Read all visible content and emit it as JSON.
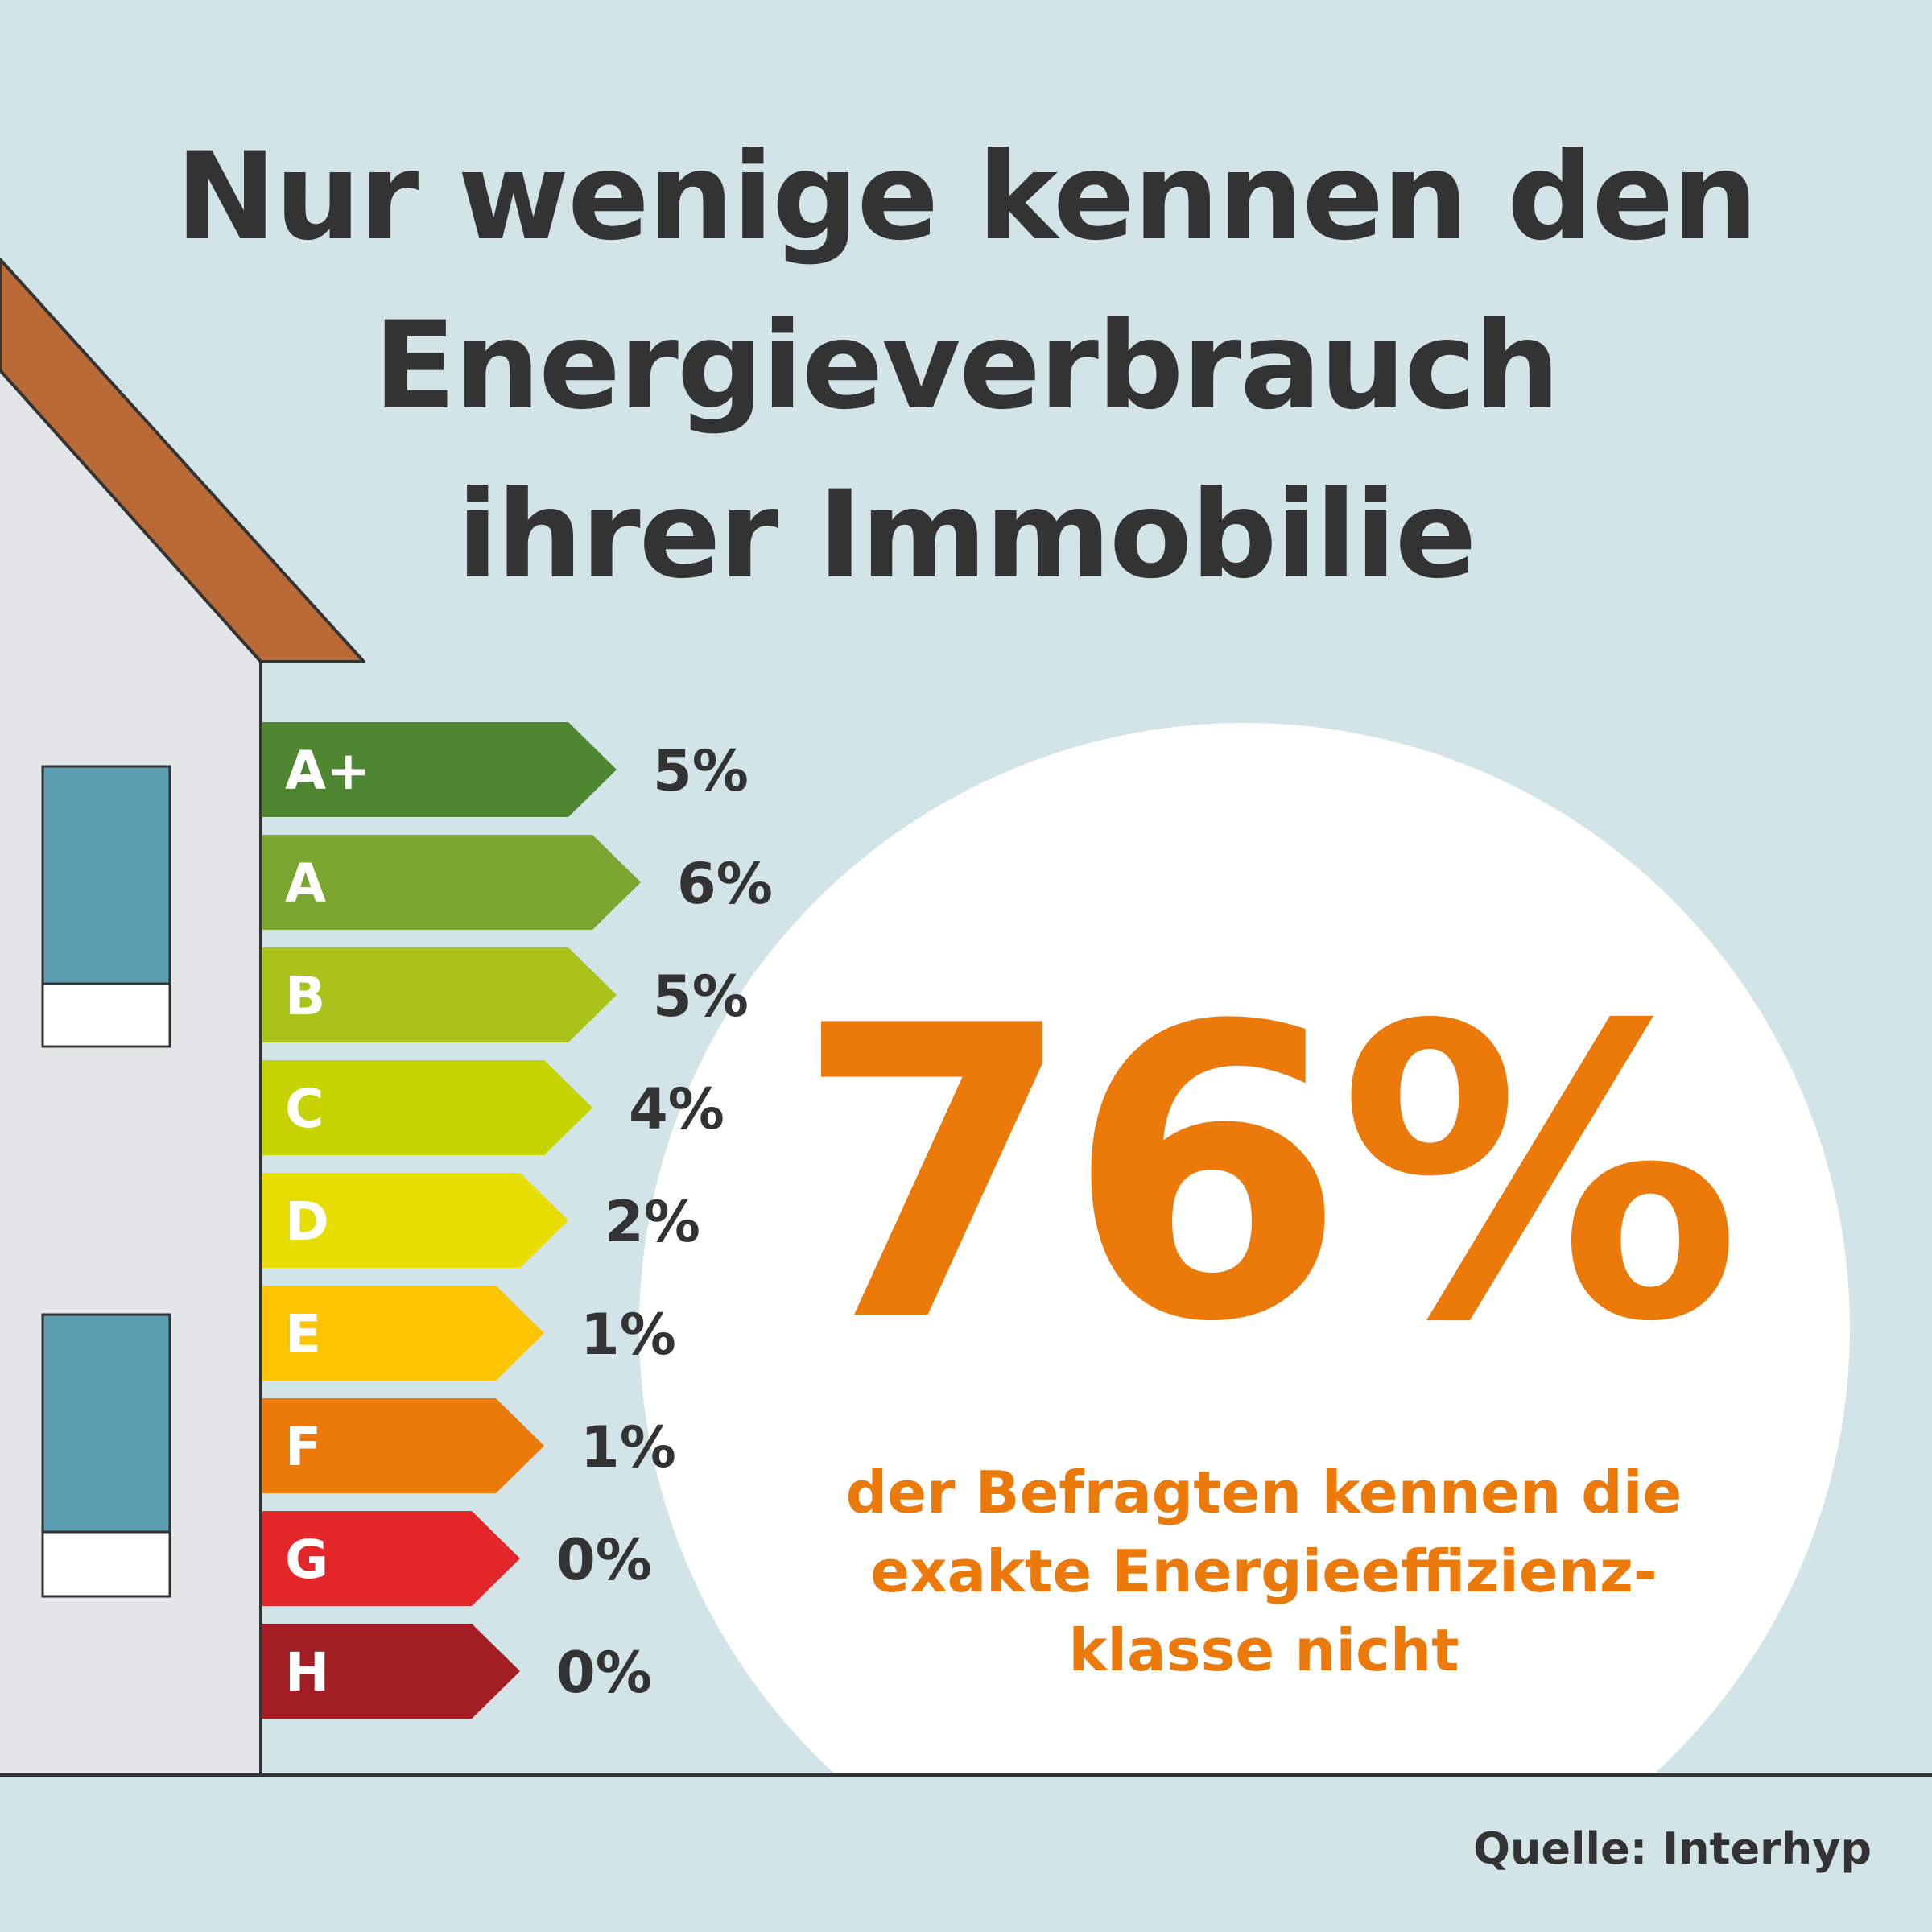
{
  "title": {
    "line1": "Nur wenige kennen den",
    "line2": "Energieverbrauch",
    "line3": "ihrer Immobilie"
  },
  "headline_stat": {
    "value": "76%",
    "description_line1": "der Befragten kennen die",
    "description_line2": "exakte Energieeffizienz-",
    "description_line3": "klasse nicht"
  },
  "source": "Quelle: Interhyp",
  "colors": {
    "background": "#d3e4e9",
    "house_wall": "#e3e6e6",
    "roof": "#ba6a37",
    "window": "#5a9db0",
    "accent_orange": "#ec7a0b",
    "text_dark": "#333333"
  },
  "chart_data": {
    "type": "bar",
    "title": "",
    "xlabel": "",
    "ylabel": "",
    "unit": "%",
    "categories": [
      "A+",
      "A",
      "B",
      "C",
      "D",
      "E",
      "F",
      "G",
      "H"
    ],
    "values": [
      5,
      6,
      5,
      4,
      2,
      1,
      1,
      0,
      0
    ],
    "value_labels": [
      "5%",
      "6%",
      "5%",
      "4%",
      "2%",
      "1%",
      "1%",
      "0%",
      "0%"
    ],
    "bar_colors": [
      "#4f8631",
      "#7aa52e",
      "#a9c31a",
      "#c7d300",
      "#e8dd00",
      "#fcc500",
      "#ec7a0b",
      "#e3262a",
      "#a31e22"
    ],
    "bar_lengths_by_class": [
      9,
      10,
      9,
      8,
      7,
      6,
      6,
      5,
      5
    ],
    "note": ""
  }
}
